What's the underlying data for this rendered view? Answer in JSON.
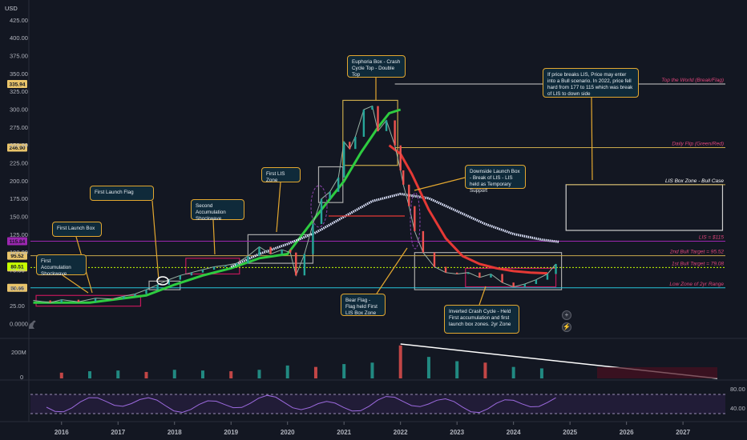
{
  "currency": "USD",
  "chart_data": {
    "type": "line",
    "title": "",
    "y_ticks": [
      "425.00",
      "400.00",
      "375.00",
      "350.00",
      "325.00",
      "300.00",
      "275.00",
      "250.00",
      "225.00",
      "200.00",
      "175.00",
      "150.00",
      "125.00",
      "100.00",
      "75.00",
      "50.00",
      "25.00",
      "0.0000"
    ],
    "y_tick_values": [
      425,
      400,
      375,
      350,
      325,
      300,
      275,
      250,
      225,
      200,
      175,
      150,
      125,
      100,
      75,
      50,
      25,
      0
    ],
    "ylim": [
      0,
      440
    ],
    "x_ticks": [
      "2016",
      "2017",
      "2018",
      "2019",
      "2020",
      "2021",
      "2022",
      "2023",
      "2024",
      "2025",
      "2026",
      "2027"
    ],
    "x_tick_values": [
      2016,
      2017,
      2018,
      2019,
      2020,
      2021,
      2022,
      2023,
      2024,
      2025,
      2026,
      2027
    ],
    "xlim": [
      2015.45,
      2027.75
    ],
    "price_series": {
      "name": "Price",
      "x": [
        2015.5,
        2015.8,
        2016.0,
        2016.3,
        2016.6,
        2016.9,
        2017.1,
        2017.3,
        2017.5,
        2017.7,
        2017.9,
        2018.1,
        2018.3,
        2018.5,
        2018.7,
        2018.9,
        2019.1,
        2019.3,
        2019.5,
        2019.7,
        2019.9,
        2020.05,
        2020.15,
        2020.3,
        2020.45,
        2020.6,
        2020.75,
        2020.9,
        2021.0,
        2021.1,
        2021.2,
        2021.35,
        2021.5,
        2021.6,
        2021.75,
        2021.9,
        2022.0,
        2022.05,
        2022.15,
        2022.25,
        2022.4,
        2022.6,
        2022.8,
        2023.0,
        2023.2,
        2023.4,
        2023.6,
        2023.8,
        2024.0,
        2024.2,
        2024.4,
        2024.6,
        2024.75
      ],
      "y": [
        33,
        30,
        34,
        31,
        36,
        35,
        39,
        42,
        48,
        55,
        62,
        68,
        72,
        76,
        80,
        82,
        85,
        95,
        108,
        98,
        104,
        100,
        68,
        98,
        140,
        175,
        185,
        205,
        255,
        245,
        262,
        300,
        305,
        270,
        285,
        250,
        215,
        195,
        165,
        130,
        100,
        80,
        72,
        70,
        72,
        65,
        70,
        58,
        52,
        56,
        62,
        70,
        84
      ]
    },
    "ma_slow": {
      "name": "",
      "x": [
        2015.5,
        2016.5,
        2017.5,
        2018.0,
        2018.5,
        2019.0,
        2019.5,
        2020.0,
        2020.5,
        2021.0,
        2021.3,
        2021.6,
        2021.8,
        2022.0
      ],
      "y": [
        30,
        30,
        40,
        55,
        68,
        78,
        92,
        98,
        150,
        200,
        240,
        275,
        295,
        300
      ]
    },
    "ma_fast": {
      "name": "",
      "x": [
        2019.0,
        2019.5,
        2020.0,
        2020.5,
        2021.0,
        2021.5,
        2022.0,
        2022.5,
        2023.0,
        2023.5,
        2024.0,
        2024.5,
        2024.8
      ],
      "y": [
        80,
        98,
        112,
        128,
        150,
        172,
        182,
        176,
        158,
        140,
        126,
        118,
        115
      ]
    },
    "red_line": {
      "name": "",
      "x": [
        2021.8,
        2022.0,
        2022.2,
        2022.5,
        2022.8,
        2023.1,
        2023.4,
        2023.7,
        2024.0,
        2024.3,
        2024.6
      ],
      "y": [
        250,
        238,
        210,
        160,
        120,
        95,
        84,
        78,
        74,
        72,
        71
      ]
    },
    "volume": {
      "label": "200M",
      "ticks": [
        "200M",
        "0"
      ],
      "x": [
        2016,
        2016.5,
        2017,
        2017.5,
        2018,
        2018.5,
        2019,
        2019.5,
        2020,
        2020.5,
        2021,
        2021.5,
        2022,
        2022.5,
        2023,
        2023.5,
        2024,
        2024.5
      ],
      "y": [
        40,
        50,
        55,
        45,
        60,
        55,
        50,
        60,
        90,
        80,
        100,
        110,
        230,
        150,
        120,
        110,
        80,
        70
      ]
    },
    "rsi": {
      "ticks": [
        "80.00",
        "40.00"
      ],
      "upper": 80,
      "lower": 40
    },
    "levels": [
      {
        "label": "Top the World (Break/Flag)",
        "value": 335.94,
        "tag": "335.94",
        "color": "#e0457b"
      },
      {
        "label": "Daily Flip (Green/Red)",
        "value": 246.9,
        "tag": "246.90",
        "color": "#e0457b"
      },
      {
        "label": "LIS Box Zone - Bull Case",
        "value": 195,
        "tag": "",
        "color": "#ffffff"
      },
      {
        "label": "LIS = $115",
        "value": 115.84,
        "tag": "115.84",
        "color": "#e0457b"
      },
      {
        "label": "2nd Bull Target = 95.52",
        "value": 95.52,
        "tag": "95.52",
        "color": "#e0457b"
      },
      {
        "label": "1st Bull Target = 79.08",
        "value": 79.08,
        "tag": "79.08",
        "color": "#e0457b"
      },
      {
        "label": "Low Zone of 2yr Range",
        "value": 50.66,
        "tag": "50.66",
        "color": "#e0457b"
      }
    ],
    "price_tag": "80.51",
    "callouts": [
      {
        "id": "first-accumulation",
        "text": "First Accumulation Shockwave"
      },
      {
        "id": "first-launch-box",
        "text": "First Launch Box"
      },
      {
        "id": "first-launch-flag",
        "text": "First Launch Flag"
      },
      {
        "id": "second-accumulation",
        "text": "Second Accumulation Shockwave"
      },
      {
        "id": "first-lis-zone",
        "text": "First LIS Zone"
      },
      {
        "id": "euphoria-box",
        "text": "Euphoria Box - Crash Cycle Top - Double Top"
      },
      {
        "id": "downside-launch",
        "text": "Downside Launch Box - Break of LIS - LIS held as Temporary Support"
      },
      {
        "id": "bull-scenario",
        "text": "If price breaks LIS, Price may enter into a Bull scenario. In 2022, price fell hard from 177 to 115 which was break of LIS to down side"
      },
      {
        "id": "bear-flag",
        "text": "Bear Flag - Flag held First LIS Box Zone"
      },
      {
        "id": "inverted-crash",
        "text": "Inverted Crash Cycle - Held  First accumulation and first launch box zones. 2yr Zone"
      }
    ]
  }
}
